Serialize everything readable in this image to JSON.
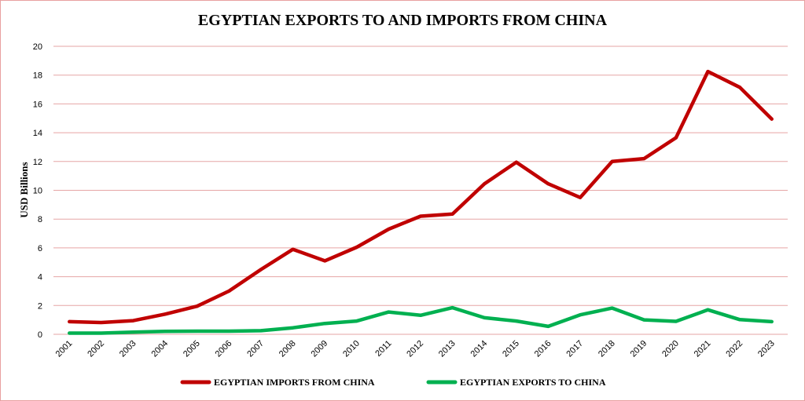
{
  "chart_data": {
    "type": "line",
    "title": "EGYPTIAN EXPORTS TO AND IMPORTS FROM CHINA",
    "xlabel": "",
    "ylabel": "USD Billions",
    "x": [
      "2001",
      "2002",
      "2003",
      "2004",
      "2005",
      "2006",
      "2007",
      "2008",
      "2009",
      "2010",
      "2011",
      "2012",
      "2013",
      "2014",
      "2015",
      "2016",
      "2017",
      "2018",
      "2019",
      "2020",
      "2021",
      "2022",
      "2023"
    ],
    "ylim": [
      0,
      20
    ],
    "yticks": [
      "0",
      "2",
      "4",
      "6",
      "8",
      "10",
      "12",
      "14",
      "16",
      "18",
      "20"
    ],
    "grid": true,
    "legend": "bottom",
    "series": [
      {
        "name": "EGYPTIAN IMPORTS FROM CHINA",
        "color": "#c00000",
        "values": [
          0.88,
          0.82,
          0.95,
          1.4,
          1.95,
          3.0,
          4.5,
          5.9,
          5.1,
          6.05,
          7.3,
          8.2,
          8.35,
          10.45,
          11.95,
          10.45,
          9.5,
          12.0,
          12.2,
          13.65,
          18.25,
          17.15,
          14.95
        ]
      },
      {
        "name": "EGYPTIAN EXPORTS TO CHINA",
        "color": "#00b050",
        "values": [
          0.08,
          0.08,
          0.15,
          0.2,
          0.22,
          0.22,
          0.25,
          0.45,
          0.75,
          0.92,
          1.55,
          1.32,
          1.85,
          1.15,
          0.92,
          0.55,
          1.35,
          1.82,
          1.0,
          0.9,
          1.7,
          1.02,
          0.88
        ]
      }
    ]
  }
}
